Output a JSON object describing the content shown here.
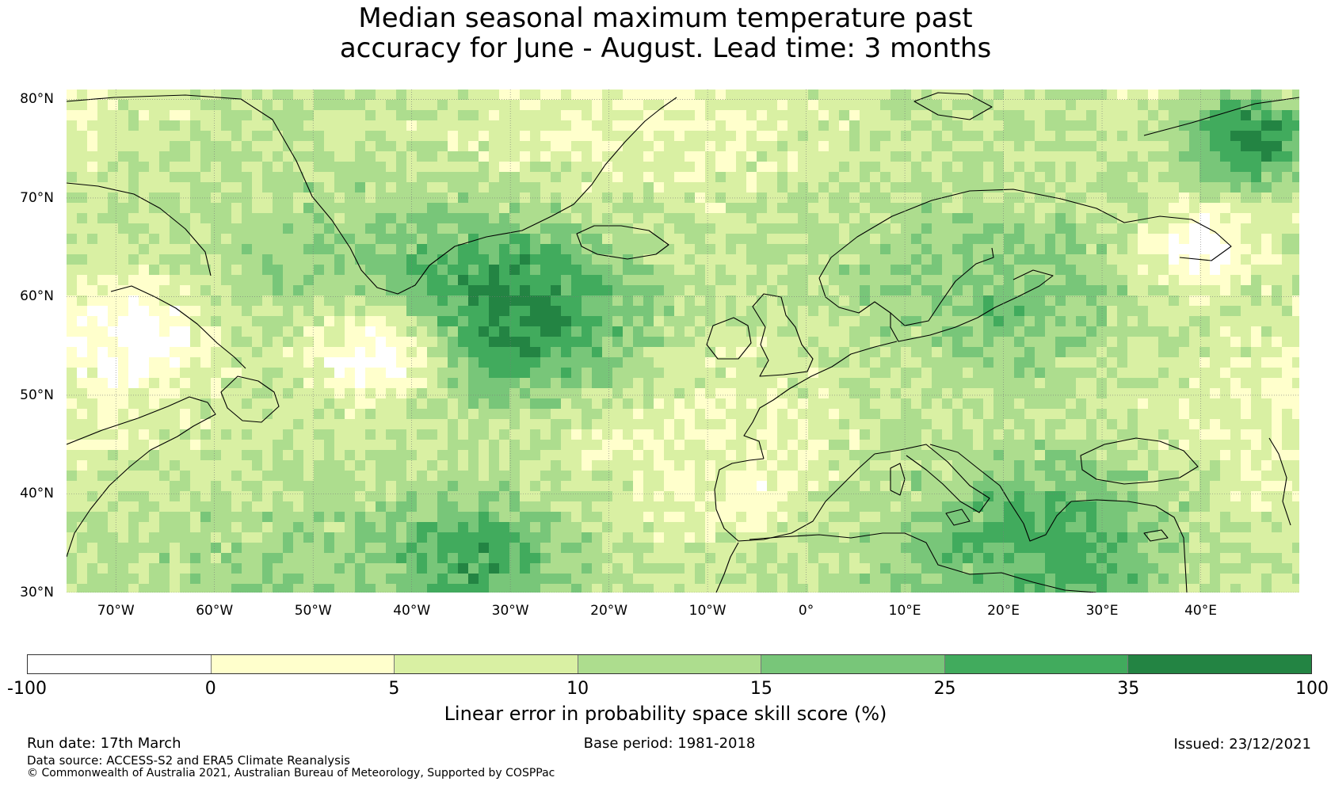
{
  "title": {
    "line1": "Median seasonal maximum temperature past",
    "line2": "accuracy for June - August. Lead time: 3 months"
  },
  "map": {
    "extent": {
      "lon_min": -75,
      "lon_max": 50,
      "lat_min": 30,
      "lat_max": 81
    },
    "lat_labels": [
      {
        "value": 80,
        "label": "80°N"
      },
      {
        "value": 70,
        "label": "70°N"
      },
      {
        "value": 60,
        "label": "60°N"
      },
      {
        "value": 50,
        "label": "50°N"
      },
      {
        "value": 40,
        "label": "40°N"
      },
      {
        "value": 30,
        "label": "30°N"
      }
    ],
    "lon_labels": [
      {
        "value": -70,
        "label": "70°W"
      },
      {
        "value": -60,
        "label": "60°W"
      },
      {
        "value": -50,
        "label": "50°W"
      },
      {
        "value": -40,
        "label": "40°W"
      },
      {
        "value": -30,
        "label": "30°W"
      },
      {
        "value": -20,
        "label": "20°W"
      },
      {
        "value": -10,
        "label": "10°W"
      },
      {
        "value": 0,
        "label": "0°"
      },
      {
        "value": 10,
        "label": "10°E"
      },
      {
        "value": 20,
        "label": "20°E"
      },
      {
        "value": 30,
        "label": "30°E"
      },
      {
        "value": 40,
        "label": "40°E"
      }
    ],
    "gridlines": "dotted",
    "coastline_color": "#000000",
    "skill_regions": [
      {
        "name": "central-north-atlantic",
        "lon": -30,
        "lat": 58,
        "level": 6,
        "radius_deg": 9
      },
      {
        "name": "mid-atlantic-southwest",
        "lon": -33,
        "lat": 33,
        "level": 5,
        "radius_deg": 7
      },
      {
        "name": "mediterranean-east",
        "lon": 25,
        "lat": 35,
        "level": 5,
        "radius_deg": 8
      },
      {
        "name": "barents-sea",
        "lon": 45,
        "lat": 76,
        "level": 6,
        "radius_deg": 5
      },
      {
        "name": "scandinavia-baltic",
        "lon": 20,
        "lat": 59,
        "level": 4,
        "radius_deg": 6
      },
      {
        "name": "newfoundland-west",
        "lon": -68,
        "lat": 56,
        "level": 0,
        "radius_deg": 6
      },
      {
        "name": "labrador-sea-south",
        "lon": -44,
        "lat": 54,
        "level": 0,
        "radius_deg": 5
      },
      {
        "name": "iberia",
        "lon": -6,
        "lat": 40,
        "level": 1,
        "radius_deg": 4
      },
      {
        "name": "white-sea",
        "lon": 40,
        "lat": 65,
        "level": 0,
        "radius_deg": 4
      }
    ]
  },
  "colorbar": {
    "colors": [
      "#ffffff",
      "#ffffcc",
      "#d9f0a3",
      "#addd8e",
      "#78c679",
      "#41ab5d",
      "#238443"
    ],
    "ticks": [
      "-100",
      "0",
      "5",
      "10",
      "15",
      "25",
      "35",
      "100"
    ],
    "label": "Linear error in probability space skill score (%)"
  },
  "footer": {
    "run_date": "Run date: 17th March",
    "base_period": "Base period: 1981-2018",
    "issued": "Issued: 23/12/2021",
    "data_source": "Data source: ACCESS-S2 and ERA5 Climate Reanalysis",
    "copyright": "© Commonwealth of Australia 2021, Australian Bureau of Meteorology, Supported by COSPPac"
  }
}
